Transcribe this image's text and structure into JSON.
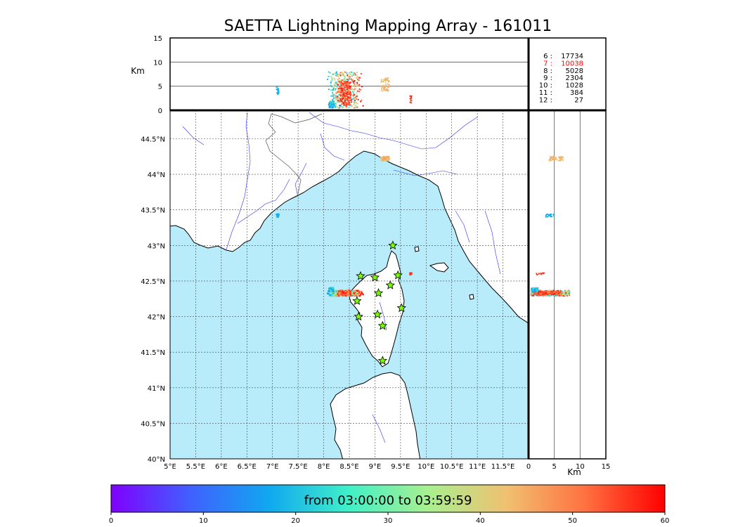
{
  "title": "SAETTA Lightning Mapping Array - 161011",
  "time_range": "from 03:00:00 to 03:59:59",
  "altitude_panel": {
    "ylabel": "Km",
    "yticks": [
      0,
      5,
      10,
      15
    ],
    "gridlines": [
      5,
      10
    ]
  },
  "side_panel": {
    "xlabel": "Km",
    "xticks": [
      0,
      5,
      10,
      15
    ],
    "gridlines": [
      5,
      10
    ]
  },
  "map": {
    "lon_range": [
      5.0,
      12.0
    ],
    "lat_range": [
      40.0,
      44.9
    ],
    "lon_ticks": [
      "5°E",
      "5.5°E",
      "6°E",
      "6.5°E",
      "7°E",
      "7.5°E",
      "8°E",
      "8.5°E",
      "9°E",
      "9.5°E",
      "10°E",
      "10.5°E",
      "11°E",
      "11.5°E"
    ],
    "lat_ticks": [
      "40°N",
      "40.5°N",
      "41°N",
      "41.5°N",
      "42°N",
      "42.5°N",
      "43°N",
      "43.5°N",
      "44°N",
      "44.5°N"
    ],
    "sea_color": "#b8ecfb",
    "land_color": "#ffffff",
    "stations_icon": "star-icon",
    "station_color": "#7cfc00",
    "stations": [
      {
        "lon": 9.35,
        "lat": 43.0
      },
      {
        "lon": 8.72,
        "lat": 42.57
      },
      {
        "lon": 9.0,
        "lat": 42.55
      },
      {
        "lon": 9.45,
        "lat": 42.58
      },
      {
        "lon": 9.3,
        "lat": 42.44
      },
      {
        "lon": 9.07,
        "lat": 42.33
      },
      {
        "lon": 8.65,
        "lat": 42.22
      },
      {
        "lon": 9.52,
        "lat": 42.12
      },
      {
        "lon": 9.05,
        "lat": 42.03
      },
      {
        "lon": 8.68,
        "lat": 42.0
      },
      {
        "lon": 9.15,
        "lat": 41.87
      },
      {
        "lon": 9.15,
        "lat": 41.38
      }
    ]
  },
  "counts": {
    "rows": [
      {
        "label": "6 :",
        "value": "17734",
        "color": "#000000"
      },
      {
        "label": "7 :",
        "value": "10038",
        "color": "#ff0000"
      },
      {
        "label": "8 :",
        "value": "5028",
        "color": "#000000"
      },
      {
        "label": "9 :",
        "value": "2304",
        "color": "#000000"
      },
      {
        "label": "10 :",
        "value": "1028",
        "color": "#000000"
      },
      {
        "label": "11 :",
        "value": "384",
        "color": "#000000"
      },
      {
        "label": "12 :",
        "value": "27",
        "color": "#000000"
      }
    ]
  },
  "colorbar": {
    "ticks": [
      0,
      10,
      20,
      30,
      40,
      50,
      60
    ],
    "colors": [
      "#8000ff",
      "#4060ff",
      "#10a8f0",
      "#40f0c8",
      "#a8f090",
      "#f0c070",
      "#ff7040",
      "#ff0000"
    ]
  }
}
